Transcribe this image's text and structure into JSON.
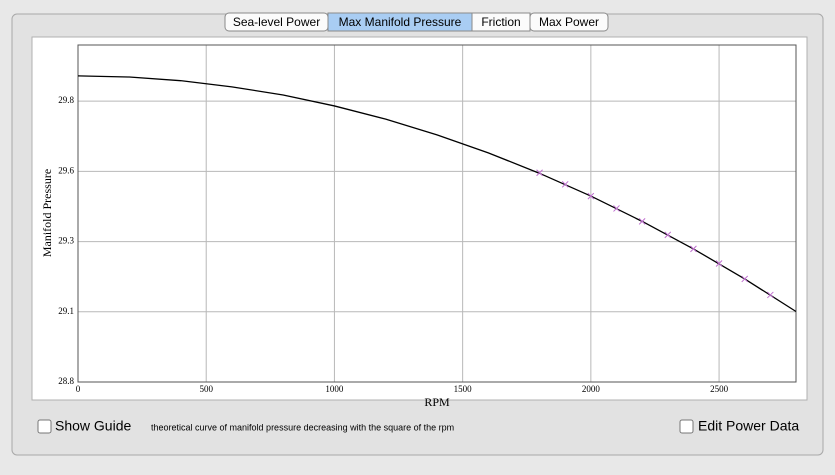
{
  "tabs": [
    "Sea-level Power",
    "Max Manifold Pressure",
    "Friction",
    "Max Power"
  ],
  "selected_tab": 1,
  "chart_data": {
    "type": "line",
    "x_label": "RPM",
    "y_label": "Manifold Pressure",
    "xlim": [
      0,
      2800
    ],
    "xticks": [
      0,
      500,
      1000,
      1500,
      2000,
      2500
    ],
    "ylim": [
      28.8,
      30
    ],
    "yticks": [
      28.8,
      {
        "value": 29.05,
        "label": "29.1"
      },
      29.3,
      {
        "value": 29.55,
        "label": "29.6"
      },
      29.8
    ],
    "grid": true,
    "series": [
      {
        "type": "line",
        "color": "#000000",
        "x": [
          0,
          200,
          400,
          600,
          800,
          1000,
          1200,
          1400,
          1600,
          1800,
          2000,
          2200,
          2400,
          2600,
          2800
        ],
        "values": [
          29.89,
          29.886,
          29.873,
          29.851,
          29.822,
          29.783,
          29.736,
          29.68,
          29.616,
          29.543,
          29.462,
          29.372,
          29.274,
          29.167,
          29.051
        ]
      },
      {
        "type": "scatter",
        "color": "#c070d0",
        "x": [
          1800,
          1900,
          2000,
          2100,
          2200,
          2300,
          2400,
          2500,
          2600,
          2700
        ],
        "values": [
          29.545,
          29.504,
          29.462,
          29.418,
          29.372,
          29.324,
          29.274,
          29.222,
          29.167,
          29.11
        ]
      }
    ]
  },
  "controls": {
    "show_guide": "Show Guide",
    "caption": "theoretical curve of manifold pressure decreasing with the square of the rpm",
    "edit_power_data": "Edit Power Data"
  }
}
